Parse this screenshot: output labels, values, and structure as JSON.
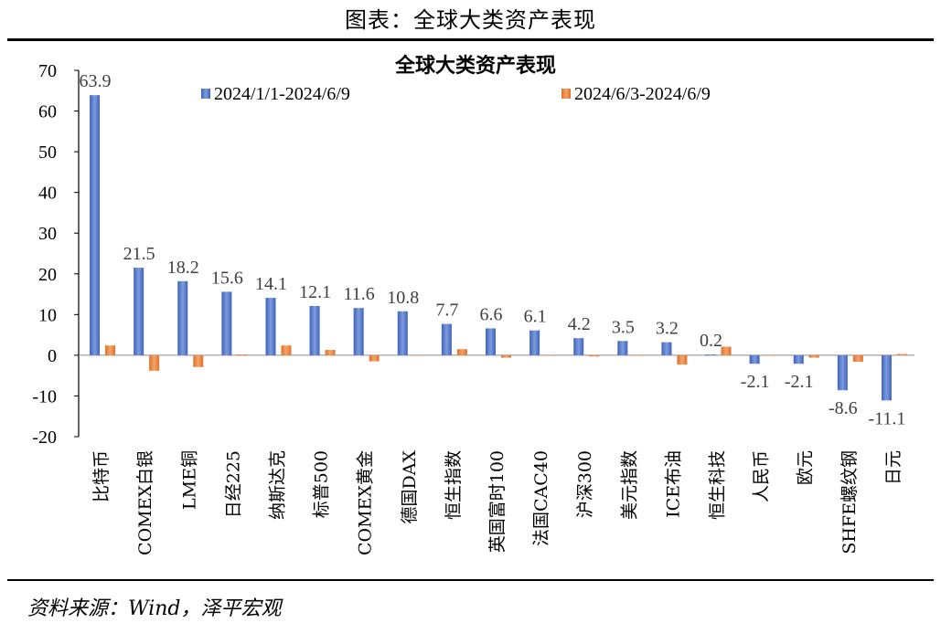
{
  "header": {
    "title": "图表：全球大类资产表现"
  },
  "footer": {
    "source": "资料来源：Wind，泽平宏观"
  },
  "chart_data": {
    "type": "bar",
    "title": "全球大类资产表现",
    "ylim": [
      -20,
      70
    ],
    "yticks": [
      70,
      60,
      50,
      40,
      30,
      20,
      10,
      0,
      -10,
      -20
    ],
    "legend_position": "top",
    "categories": [
      "比特币",
      "COMEX白银",
      "LME铜",
      "日经225",
      "纳斯达克",
      "标普500",
      "COMEX黄金",
      "德国DAX",
      "恒生指数",
      "英国富时100",
      "法国CAC40",
      "沪深300",
      "美元指数",
      "ICE布油",
      "恒生科技",
      "人民币",
      "欧元",
      "SHFE螺纹钢",
      "日元"
    ],
    "series": [
      {
        "name": "2024/1/1-2024/6/9",
        "color": "#4F74C8",
        "values": [
          63.9,
          21.5,
          18.2,
          15.6,
          14.1,
          12.1,
          11.6,
          10.8,
          7.7,
          6.6,
          6.1,
          4.2,
          3.5,
          3.2,
          0.2,
          -2.1,
          -2.1,
          -8.6,
          -11.1
        ]
      },
      {
        "name": "2024/6/3-2024/6/9",
        "color": "#ED7D31",
        "values": [
          2.4,
          -3.8,
          -2.9,
          0.2,
          2.4,
          1.3,
          -1.5,
          -0.1,
          1.5,
          -0.6,
          -0.1,
          -0.3,
          0.0,
          -2.3,
          2.1,
          -0.1,
          -0.6,
          -1.6,
          0.3
        ]
      }
    ],
    "data_labels": [
      "63.9",
      "21.5",
      "18.2",
      "15.6",
      "14.1",
      "12.1",
      "11.6",
      "10.8",
      "7.7",
      "6.6",
      "6.1",
      "4.2",
      "3.5",
      "3.2",
      "0.2",
      "-2.1",
      "-2.1",
      "-8.6",
      "-11.1"
    ]
  }
}
